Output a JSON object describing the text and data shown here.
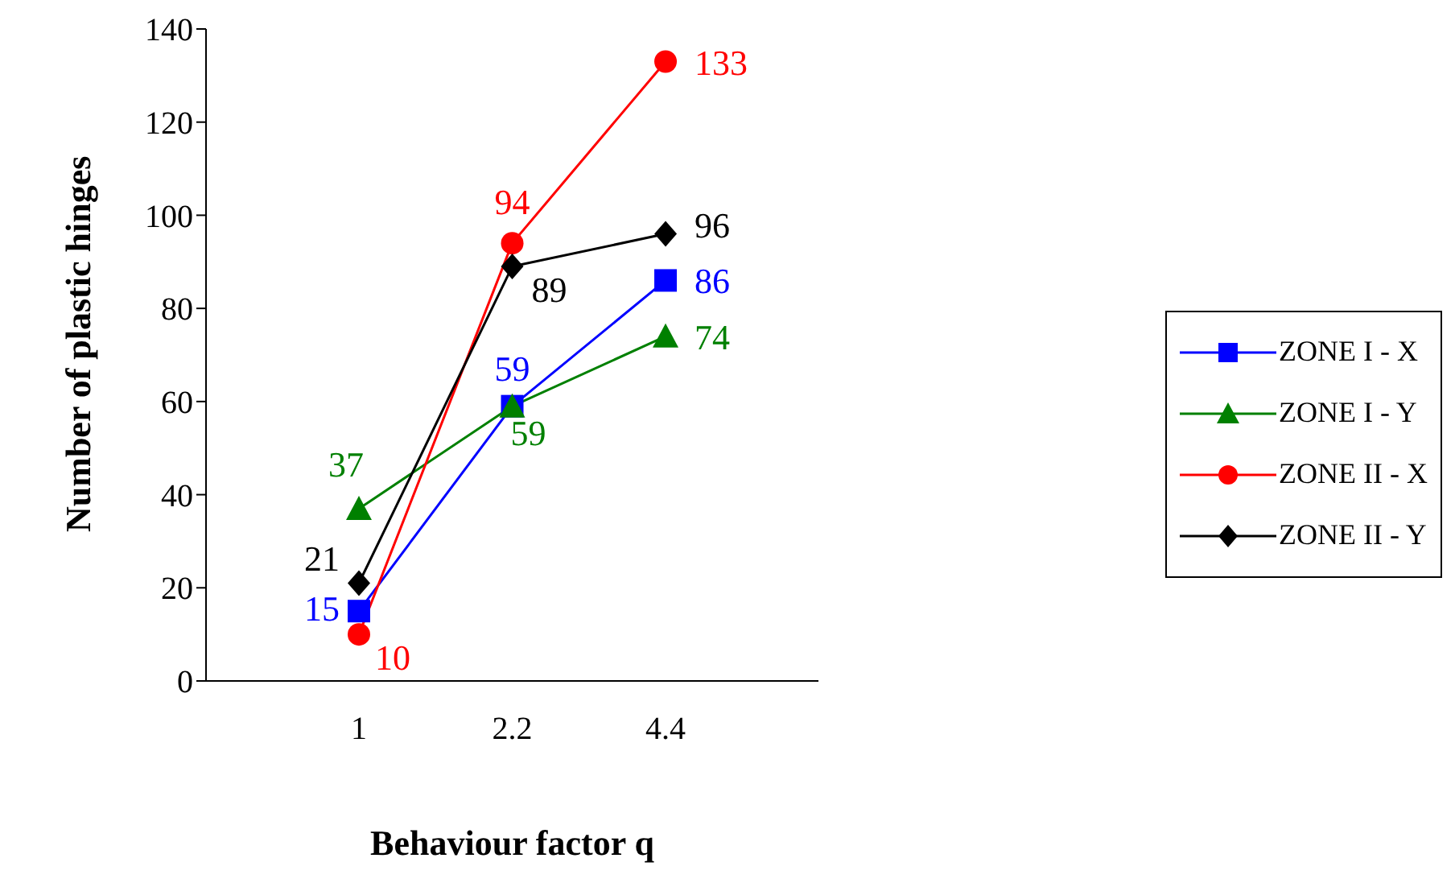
{
  "chart_data": {
    "type": "line",
    "xlabel": "Behaviour factor q",
    "ylabel": "Number of plastic hinges",
    "categories": [
      "1",
      "2.2",
      "4.4"
    ],
    "series": [
      {
        "name": "ZONE I - X",
        "color": "#0000ff",
        "marker": "square",
        "values": [
          15,
          59,
          86
        ]
      },
      {
        "name": "ZONE I - Y",
        "color": "#008000",
        "marker": "triangle",
        "values": [
          37,
          59,
          74
        ]
      },
      {
        "name": "ZONE II - X",
        "color": "#ff0000",
        "marker": "circle",
        "values": [
          10,
          94,
          133
        ]
      },
      {
        "name": "ZONE II - Y",
        "color": "#000000",
        "marker": "diamond",
        "values": [
          21,
          89,
          96
        ]
      }
    ],
    "ylim": [
      0,
      140
    ],
    "yticks": [
      0,
      20,
      40,
      60,
      80,
      100,
      120,
      140
    ],
    "grid": false,
    "legend": "right",
    "data_labels": true
  }
}
